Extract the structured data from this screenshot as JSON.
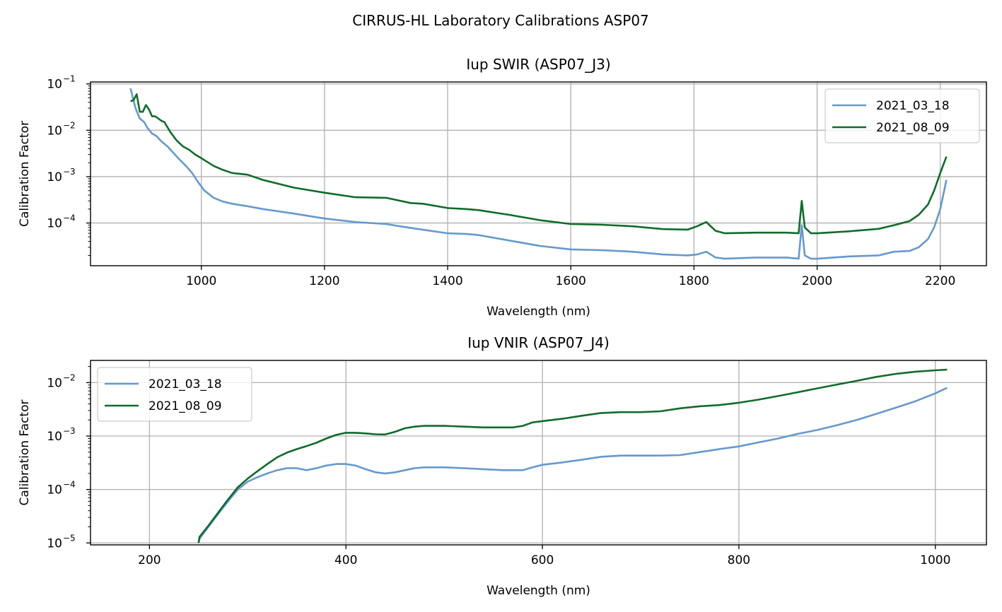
{
  "figure": {
    "suptitle": "CIRRUS-HL Laboratory Calibrations ASP07"
  },
  "colors": {
    "2021_03_18": "#6699cc",
    "2021_08_09": "#116b2c",
    "grid": "#b0b0b0"
  },
  "chart_data": [
    {
      "type": "line",
      "title": "Iup SWIR (ASP07_J3)",
      "xlabel": "Wavelength (nm)",
      "ylabel": "Calibration Factor",
      "xlim": [
        820,
        2275
      ],
      "ylim": [
        1.2e-05,
        0.11
      ],
      "yscale": "log",
      "grid": true,
      "legend": "top-right",
      "xticks": [
        1000,
        1200,
        1400,
        1600,
        1800,
        2000,
        2200
      ],
      "xtick_labels": [
        "1000",
        "1200",
        "1400",
        "1600",
        "1800",
        "2000",
        "2200"
      ],
      "yticks": [
        0.0001,
        0.001,
        0.01,
        0.1
      ],
      "ytick_labels": [
        {
          "base": "10",
          "exp": "−4"
        },
        {
          "base": "10",
          "exp": "−3"
        },
        {
          "base": "10",
          "exp": "−2"
        },
        {
          "base": "10",
          "exp": "−1"
        }
      ],
      "series": [
        {
          "name": "2021_03_18",
          "color": "#6699cc",
          "x": [
            885,
            893,
            900,
            907,
            913,
            920,
            927,
            935,
            945,
            955,
            965,
            975,
            985,
            995,
            1005,
            1020,
            1035,
            1050,
            1075,
            1100,
            1150,
            1200,
            1250,
            1300,
            1330,
            1350,
            1400,
            1430,
            1450,
            1500,
            1550,
            1600,
            1650,
            1700,
            1750,
            1790,
            1805,
            1820,
            1835,
            1850,
            1900,
            1950,
            1970,
            1975,
            1980,
            1990,
            2000,
            2050,
            2100,
            2125,
            2150,
            2165,
            2180,
            2190,
            2200,
            2210
          ],
          "y": [
            0.08,
            0.03,
            0.018,
            0.015,
            0.011,
            0.0085,
            0.0075,
            0.0058,
            0.0045,
            0.0032,
            0.0023,
            0.0017,
            0.0012,
            0.00075,
            0.0005,
            0.00035,
            0.00029,
            0.00026,
            0.00023,
            0.0002,
            0.00016,
            0.000125,
            0.000105,
            9.5e-05,
            8.2e-05,
            7.5e-05,
            6e-05,
            5.8e-05,
            5.5e-05,
            4.2e-05,
            3.2e-05,
            2.7e-05,
            2.6e-05,
            2.4e-05,
            2.1e-05,
            2e-05,
            2.1e-05,
            2.4e-05,
            1.8e-05,
            1.7e-05,
            1.8e-05,
            1.8e-05,
            1.7e-05,
            9e-05,
            2e-05,
            1.7e-05,
            1.7e-05,
            1.9e-05,
            2e-05,
            2.4e-05,
            2.5e-05,
            3e-05,
            4.5e-05,
            8e-05,
            0.0002,
            0.00085
          ]
        },
        {
          "name": "2021_08_09",
          "color": "#116b2c",
          "x": [
            885,
            890,
            895,
            900,
            905,
            910,
            915,
            920,
            925,
            930,
            935,
            940,
            950,
            960,
            970,
            980,
            990,
            1000,
            1020,
            1035,
            1050,
            1075,
            1100,
            1150,
            1200,
            1250,
            1300,
            1340,
            1360,
            1400,
            1430,
            1450,
            1500,
            1550,
            1600,
            1650,
            1700,
            1750,
            1790,
            1805,
            1820,
            1835,
            1850,
            1900,
            1950,
            1970,
            1975,
            1980,
            1990,
            2000,
            2050,
            2100,
            2125,
            2150,
            2165,
            2180,
            2190,
            2200,
            2210
          ],
          "y": [
            0.042,
            0.045,
            0.06,
            0.025,
            0.025,
            0.035,
            0.028,
            0.02,
            0.02,
            0.018,
            0.016,
            0.015,
            0.009,
            0.006,
            0.0045,
            0.0038,
            0.003,
            0.0025,
            0.0017,
            0.0014,
            0.0012,
            0.0011,
            0.00085,
            0.00058,
            0.00045,
            0.00036,
            0.00035,
            0.00027,
            0.00026,
            0.00021,
            0.0002,
            0.00019,
            0.00015,
            0.000115,
            9.5e-05,
            9.2e-05,
            8.5e-05,
            7.4e-05,
            7.2e-05,
            8.5e-05,
            0.000105,
            6.8e-05,
            6e-05,
            6.2e-05,
            6.2e-05,
            6e-05,
            0.0003,
            8e-05,
            6e-05,
            6e-05,
            6.6e-05,
            7.5e-05,
            9e-05,
            0.00011,
            0.00015,
            0.00025,
            0.0005,
            0.0012,
            0.0027
          ]
        }
      ]
    },
    {
      "type": "line",
      "title": "Iup VNIR (ASP07_J4)",
      "xlabel": "Wavelength (nm)",
      "ylabel": "Calibration Factor",
      "xlim": [
        140,
        1052
      ],
      "ylim": [
        9.2e-06,
        0.026
      ],
      "yscale": "log",
      "grid": true,
      "legend": "top-left",
      "xticks": [
        200,
        400,
        600,
        800,
        1000
      ],
      "xtick_labels": [
        "200",
        "400",
        "600",
        "800",
        "1000"
      ],
      "yticks": [
        1e-05,
        0.0001,
        0.001,
        0.01
      ],
      "ytick_labels": [
        {
          "base": "10",
          "exp": "−5"
        },
        {
          "base": "10",
          "exp": "−4"
        },
        {
          "base": "10",
          "exp": "−3"
        },
        {
          "base": "10",
          "exp": "−2"
        }
      ],
      "series": [
        {
          "name": "2021_03_18",
          "color": "#6699cc",
          "x": [
            250,
            251,
            260,
            270,
            280,
            290,
            300,
            310,
            320,
            330,
            340,
            350,
            360,
            370,
            380,
            390,
            400,
            410,
            420,
            430,
            440,
            450,
            460,
            470,
            480,
            490,
            500,
            520,
            540,
            560,
            570,
            580,
            590,
            600,
            620,
            640,
            660,
            680,
            700,
            720,
            740,
            760,
            780,
            800,
            820,
            840,
            860,
            880,
            900,
            920,
            940,
            960,
            980,
            1000,
            1012
          ],
          "y": [
            1e-05,
            1.2e-05,
            2e-05,
            3.5e-05,
            6e-05,
            0.0001,
            0.00014,
            0.00017,
            0.0002,
            0.00023,
            0.00025,
            0.00025,
            0.00023,
            0.00025,
            0.00028,
            0.0003,
            0.0003,
            0.00028,
            0.00024,
            0.00021,
            0.0002,
            0.00021,
            0.00023,
            0.00025,
            0.00026,
            0.00026,
            0.00026,
            0.00025,
            0.00024,
            0.00023,
            0.00023,
            0.00023,
            0.00026,
            0.00029,
            0.00032,
            0.00036,
            0.00041,
            0.00043,
            0.00043,
            0.00043,
            0.00044,
            0.0005,
            0.00057,
            0.00064,
            0.00076,
            0.0009,
            0.0011,
            0.0013,
            0.0016,
            0.002,
            0.0026,
            0.0034,
            0.0045,
            0.0063,
            0.008
          ]
        },
        {
          "name": "2021_08_09",
          "color": "#116b2c",
          "x": [
            250,
            251,
            260,
            270,
            280,
            290,
            300,
            310,
            320,
            330,
            340,
            350,
            360,
            370,
            380,
            390,
            400,
            410,
            420,
            430,
            440,
            450,
            460,
            470,
            480,
            490,
            500,
            520,
            540,
            560,
            570,
            580,
            590,
            600,
            620,
            640,
            660,
            680,
            700,
            720,
            740,
            760,
            780,
            800,
            820,
            840,
            860,
            880,
            900,
            920,
            940,
            960,
            980,
            1000,
            1012
          ],
          "y": [
            1e-05,
            1.3e-05,
            2.1e-05,
            3.7e-05,
            6.5e-05,
            0.00011,
            0.00016,
            0.00022,
            0.0003,
            0.0004,
            0.00049,
            0.00057,
            0.00065,
            0.00075,
            0.0009,
            0.00105,
            0.00115,
            0.00115,
            0.00112,
            0.00108,
            0.00107,
            0.0012,
            0.0014,
            0.0015,
            0.00155,
            0.00155,
            0.00155,
            0.0015,
            0.00145,
            0.00145,
            0.00145,
            0.00155,
            0.0018,
            0.0019,
            0.0021,
            0.0024,
            0.0027,
            0.0028,
            0.0028,
            0.0029,
            0.0033,
            0.0036,
            0.0038,
            0.0042,
            0.0048,
            0.0056,
            0.0066,
            0.0078,
            0.0092,
            0.0108,
            0.0128,
            0.0146,
            0.016,
            0.017,
            0.0175
          ]
        }
      ]
    }
  ]
}
